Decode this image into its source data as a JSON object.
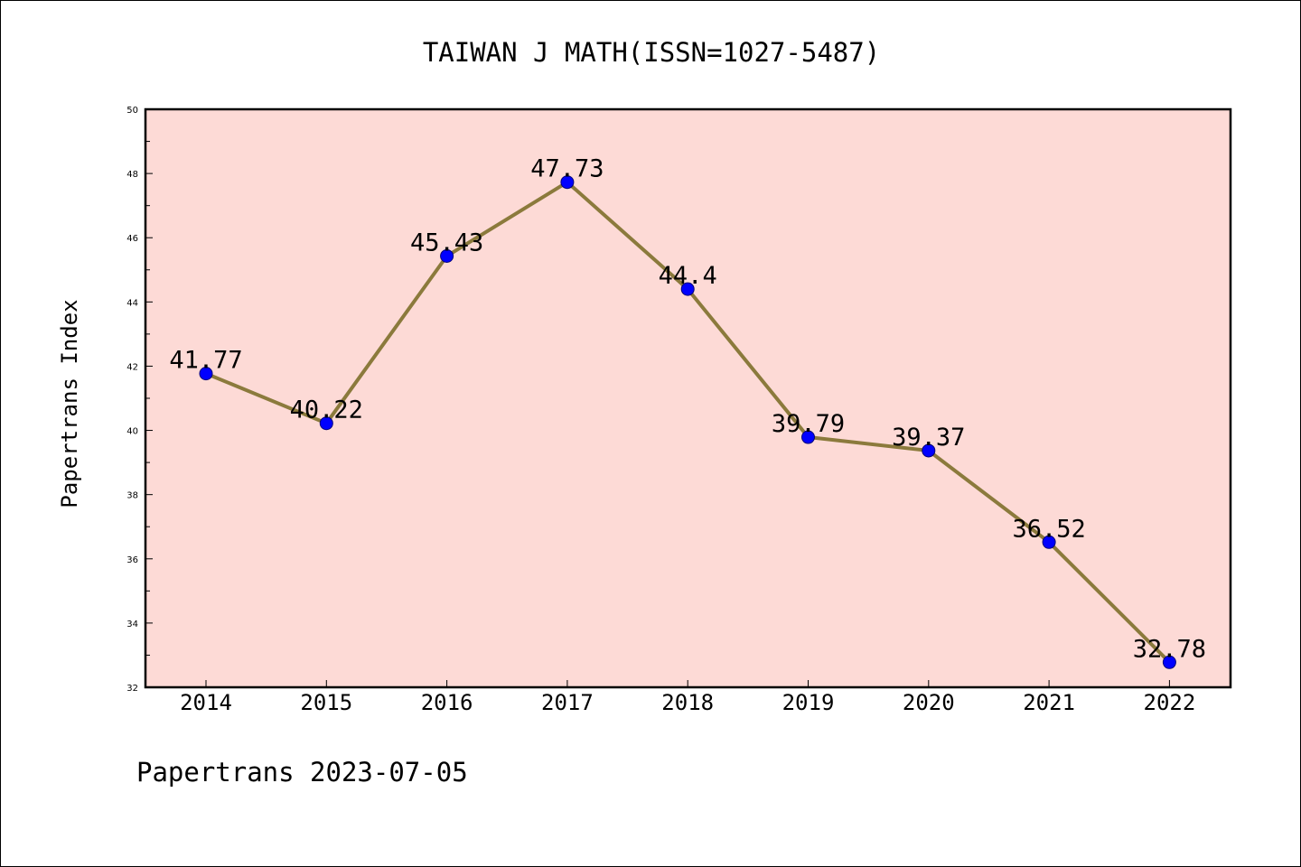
{
  "chart_data": {
    "type": "line",
    "title": "TAIWAN J MATH(ISSN=1027-5487)",
    "xlabel": "",
    "ylabel": "Papertrans Index",
    "categories": [
      "2014",
      "2015",
      "2016",
      "2017",
      "2018",
      "2019",
      "2020",
      "2021",
      "2022"
    ],
    "series": [
      {
        "values": [
          41.77,
          40.22,
          45.43,
          47.73,
          44.4,
          39.79,
          39.37,
          36.52,
          32.78
        ],
        "labels": [
          "41.77",
          "40.22",
          "45.43",
          "47.73",
          "44.4",
          "39.79",
          "39.37",
          "36.52",
          "32.78"
        ]
      }
    ],
    "ylim": [
      32,
      50
    ],
    "yticks": [
      "32",
      "34",
      "36",
      "38",
      "40",
      "42",
      "44",
      "46",
      "48",
      "50"
    ],
    "grid": false,
    "legend": "none",
    "colors": {
      "plot_background": "#fddad6",
      "line": "#8b7a3c",
      "marker": "#0000ff",
      "marker_edge": "#00007a"
    }
  },
  "footer": {
    "text": "Papertrans 2023-07-05"
  }
}
